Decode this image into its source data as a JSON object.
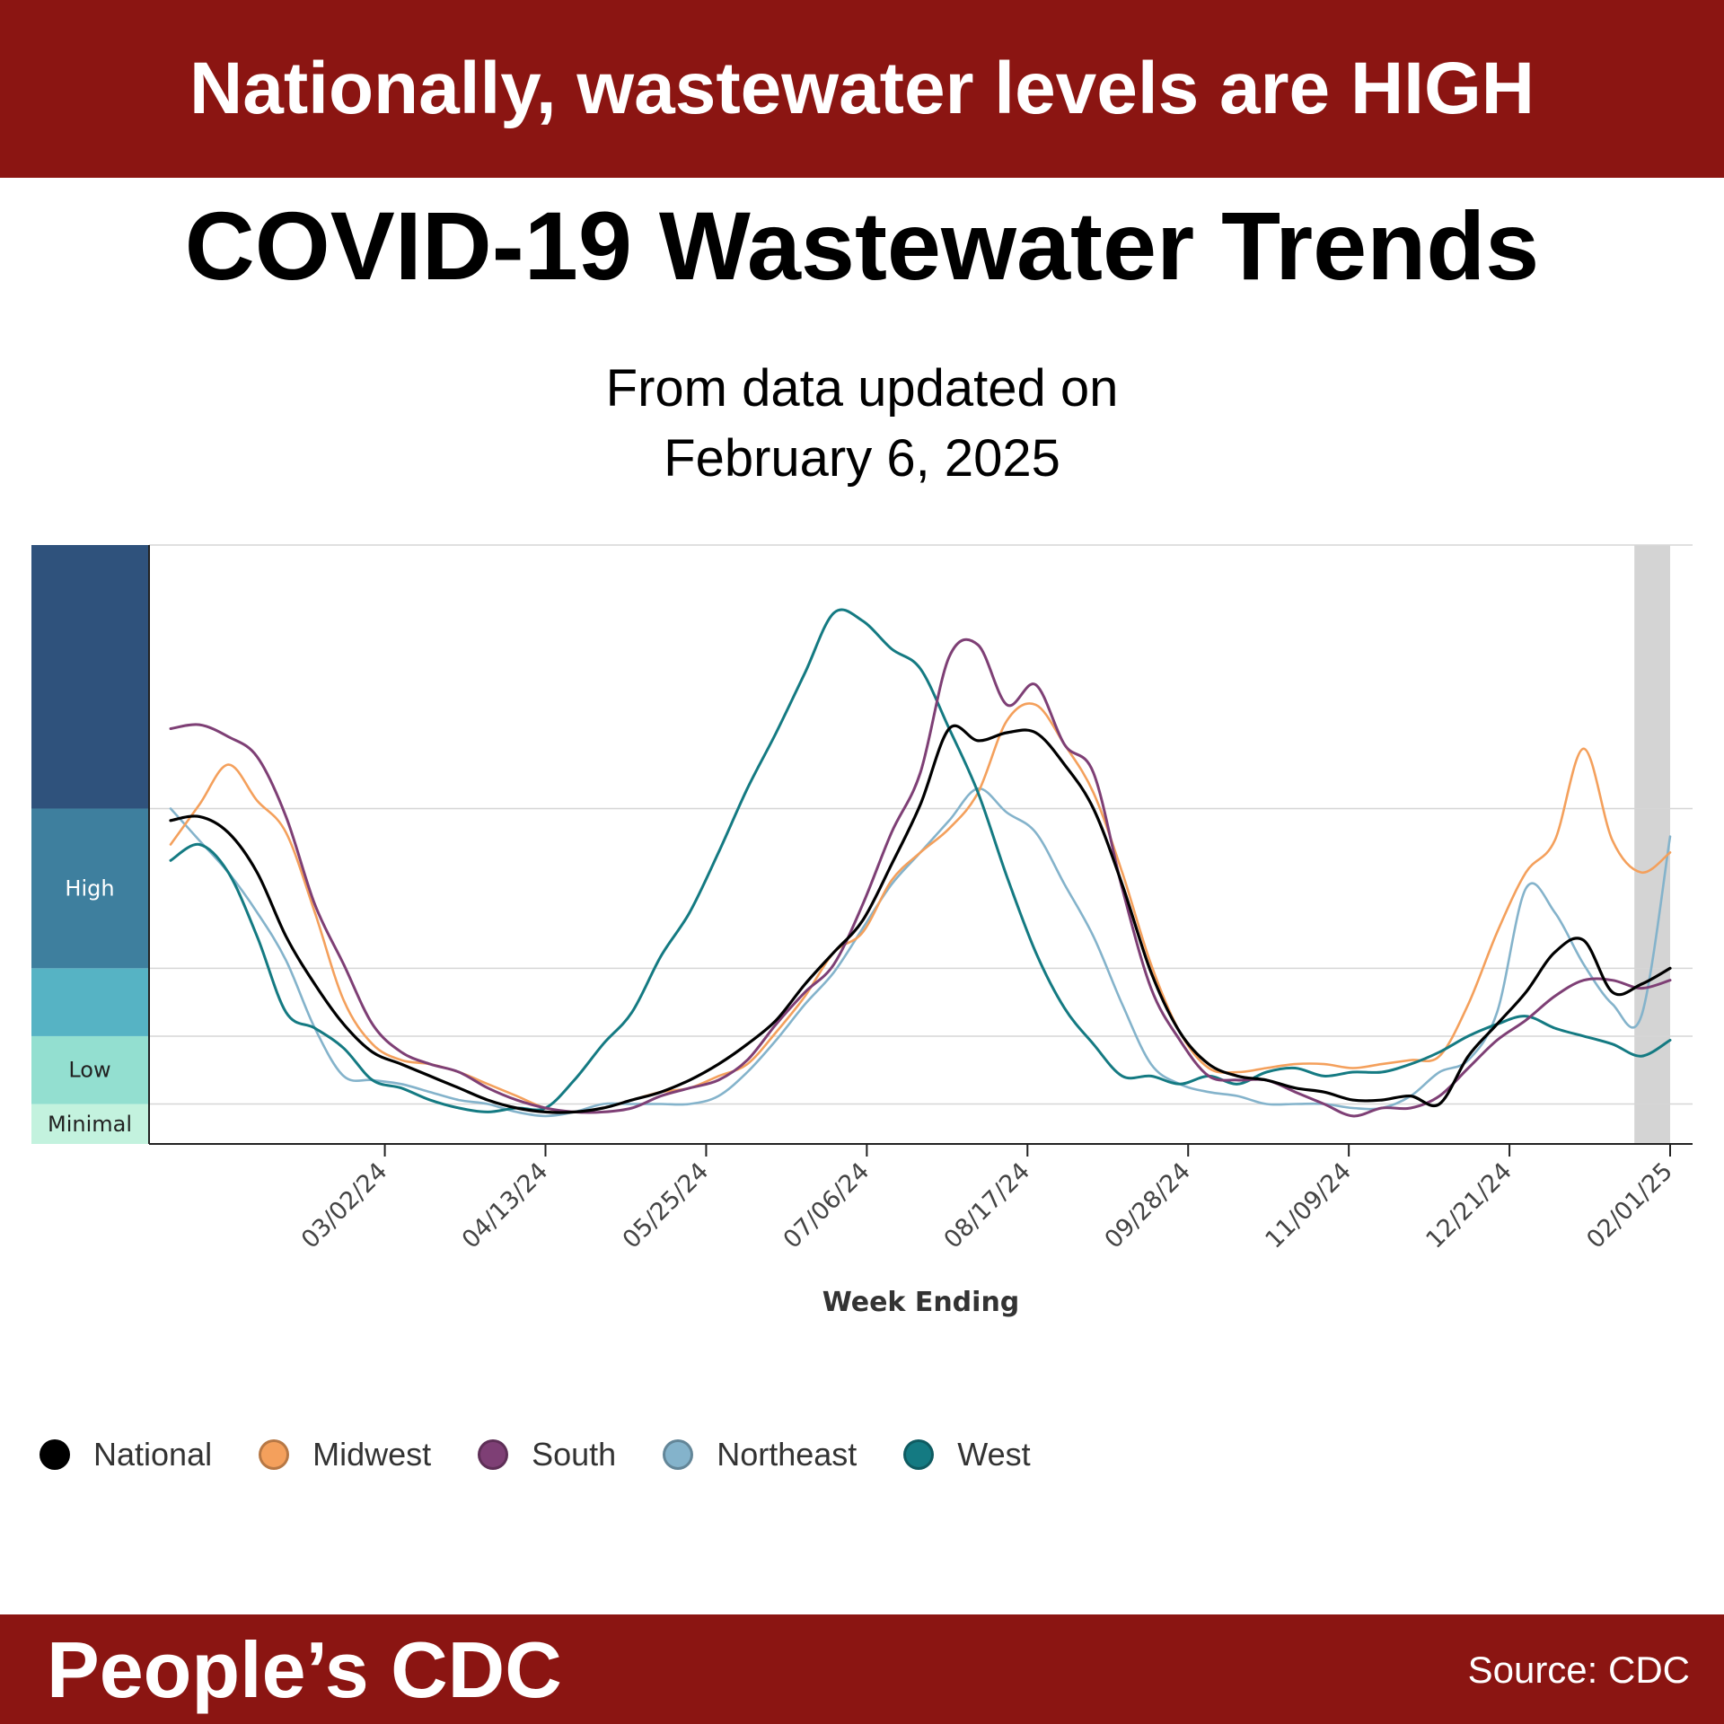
{
  "header": {
    "banner": "Nationally, wastewater levels are HIGH"
  },
  "title": "COVID-19 Wastewater Trends",
  "subtitle": {
    "line1": "From data updated on",
    "line2": "February 6, 2025"
  },
  "footer": {
    "brand": "People’s CDC",
    "source": "Source: CDC"
  },
  "chart_data": {
    "type": "line",
    "xlabel": "Week Ending",
    "ylabel": "",
    "grid": true,
    "legend_position": "bottom-left",
    "x_ticks": [
      "03/02/24",
      "04/13/24",
      "05/25/24",
      "07/06/24",
      "08/17/24",
      "09/28/24",
      "11/09/24",
      "12/21/24",
      "02/01/25"
    ],
    "x": [
      "01/06/24",
      "01/13/24",
      "01/20/24",
      "01/27/24",
      "02/03/24",
      "02/10/24",
      "02/17/24",
      "02/24/24",
      "03/02/24",
      "03/09/24",
      "03/16/24",
      "03/23/24",
      "03/30/24",
      "04/06/24",
      "04/13/24",
      "04/20/24",
      "04/27/24",
      "05/04/24",
      "05/11/24",
      "05/18/24",
      "05/25/24",
      "06/01/24",
      "06/08/24",
      "06/15/24",
      "06/22/24",
      "06/29/24",
      "07/06/24",
      "07/13/24",
      "07/20/24",
      "07/27/24",
      "08/03/24",
      "08/10/24",
      "08/17/24",
      "08/24/24",
      "08/31/24",
      "09/07/24",
      "09/14/24",
      "09/21/24",
      "09/28/24",
      "10/05/24",
      "10/12/24",
      "10/19/24",
      "10/26/24",
      "11/02/24",
      "11/09/24",
      "11/16/24",
      "11/23/24",
      "11/30/24",
      "12/07/24",
      "12/14/24",
      "12/21/24",
      "12/28/24",
      "01/04/25",
      "01/11/25",
      "01/18/25",
      "01/25/25",
      "02/01/25"
    ],
    "ylim": [
      0,
      15
    ],
    "level_bands": [
      {
        "label": "Minimal",
        "from": 0,
        "to": 1,
        "color": "#c3f2de"
      },
      {
        "label": "Low",
        "from": 1,
        "to": 2.7,
        "color": "#93dfd0"
      },
      {
        "label": "",
        "from": 2.7,
        "to": 4.4,
        "color": "#56b3c4"
      },
      {
        "label": "High",
        "from": 4.4,
        "to": 8.4,
        "color": "#3e7f9e"
      },
      {
        "label": "",
        "from": 8.4,
        "to": 15,
        "color": "#2f527c"
      }
    ],
    "shaded_recent_weeks": {
      "from": "01/25/25",
      "to": "02/01/25",
      "color": "#d4d4d4"
    },
    "series": [
      {
        "name": "National",
        "color": "#000000",
        "line_width": 3.2,
        "values": [
          8.1,
          8.2,
          7.8,
          6.8,
          5.2,
          4.0,
          3.0,
          2.3,
          2.0,
          1.7,
          1.4,
          1.1,
          0.9,
          0.8,
          0.8,
          0.9,
          1.1,
          1.3,
          1.6,
          2.0,
          2.5,
          3.1,
          4.0,
          4.8,
          5.6,
          7.0,
          8.5,
          10.4,
          10.1,
          10.3,
          10.3,
          9.5,
          8.4,
          6.5,
          4.3,
          2.8,
          2.0,
          1.7,
          1.6,
          1.4,
          1.3,
          1.1,
          1.1,
          1.2,
          1.0,
          2.2,
          3.0,
          3.8,
          4.8,
          5.1,
          3.8,
          4.0,
          4.4,
          null,
          null,
          null,
          null
        ]
      },
      {
        "name": "Midwest",
        "color": "#f4a05c",
        "line_width": 2.6,
        "values": [
          7.5,
          8.5,
          9.5,
          8.6,
          7.8,
          5.8,
          3.6,
          2.5,
          2.1,
          2.0,
          1.8,
          1.5,
          1.2,
          0.9,
          0.8,
          0.9,
          1.1,
          1.3,
          1.4,
          1.7,
          2.0,
          2.8,
          3.7,
          4.8,
          5.3,
          6.6,
          7.3,
          7.9,
          8.8,
          10.6,
          11.0,
          10.0,
          8.8,
          6.8,
          4.5,
          2.8,
          1.9,
          1.8,
          1.9,
          2.0,
          2.0,
          1.9,
          2.0,
          2.1,
          2.2,
          3.5,
          5.3,
          6.8,
          7.6,
          9.9,
          7.6,
          6.8,
          7.3,
          null,
          null,
          null,
          null
        ]
      },
      {
        "name": "South",
        "color": "#7e3f75",
        "line_width": 3.0,
        "values": [
          10.4,
          10.5,
          10.2,
          9.7,
          8.2,
          6.0,
          4.5,
          3.0,
          2.3,
          2.0,
          1.8,
          1.4,
          1.1,
          0.9,
          0.8,
          0.8,
          0.9,
          1.2,
          1.4,
          1.6,
          2.1,
          3.0,
          3.8,
          4.5,
          6.0,
          7.8,
          9.3,
          12.2,
          12.5,
          11.0,
          11.5,
          10.0,
          9.3,
          6.4,
          3.9,
          2.6,
          1.7,
          1.6,
          1.6,
          1.3,
          1.0,
          0.7,
          0.9,
          0.9,
          1.2,
          1.9,
          2.6,
          3.1,
          3.7,
          4.1,
          4.1,
          3.9,
          4.1,
          null,
          null,
          null,
          null
        ]
      },
      {
        "name": "Northeast",
        "color": "#84b3cb",
        "line_width": 2.6,
        "values": [
          8.4,
          7.6,
          6.8,
          5.8,
          4.6,
          2.9,
          1.7,
          1.6,
          1.5,
          1.3,
          1.1,
          1.0,
          0.8,
          0.7,
          0.8,
          1.0,
          1.0,
          1.0,
          1.0,
          1.2,
          1.8,
          2.6,
          3.5,
          4.3,
          5.4,
          6.5,
          7.3,
          8.1,
          8.9,
          8.3,
          7.8,
          6.5,
          5.2,
          3.5,
          2.0,
          1.5,
          1.3,
          1.2,
          1.0,
          1.0,
          1.0,
          0.9,
          0.9,
          1.2,
          1.8,
          2.1,
          3.3,
          6.4,
          5.8,
          4.5,
          3.5,
          3.2,
          7.7,
          null,
          null,
          null,
          null
        ]
      },
      {
        "name": "West",
        "color": "#147a82",
        "line_width": 3.0,
        "values": [
          7.1,
          7.5,
          6.8,
          5.2,
          3.3,
          2.9,
          2.4,
          1.6,
          1.4,
          1.1,
          0.9,
          0.8,
          0.9,
          0.9,
          1.6,
          2.5,
          3.3,
          4.7,
          5.8,
          7.3,
          8.9,
          10.3,
          11.8,
          13.3,
          13.1,
          12.4,
          11.9,
          10.4,
          8.8,
          6.7,
          4.8,
          3.4,
          2.5,
          1.7,
          1.7,
          1.5,
          1.7,
          1.5,
          1.8,
          1.9,
          1.7,
          1.8,
          1.8,
          2.0,
          2.3,
          2.7,
          3.0,
          3.2,
          2.9,
          2.7,
          2.5,
          2.2,
          2.6,
          null,
          null,
          null,
          null
        ]
      }
    ]
  }
}
